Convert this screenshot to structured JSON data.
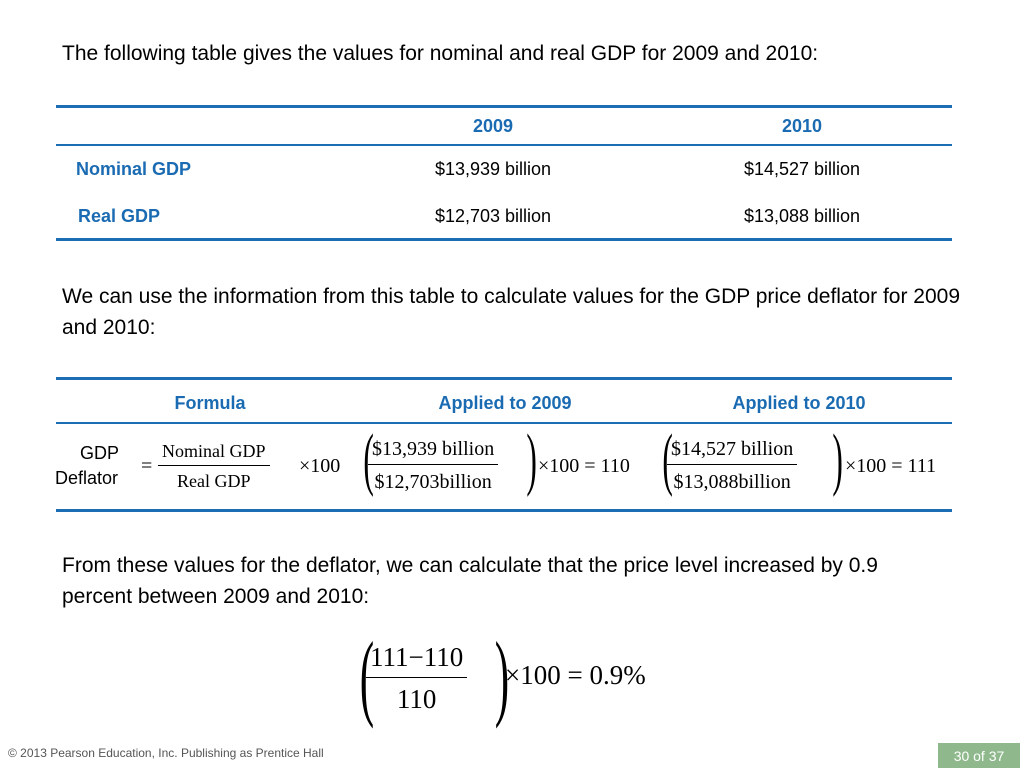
{
  "intro_text": "The following table gives the values for nominal and real GDP for 2009 and 2010:",
  "gdp_table": {
    "headers": [
      "2009",
      "2010"
    ],
    "rows": [
      {
        "label": "Nominal GDP",
        "y2009": "$13,939 billion",
        "y2010": "$14,527 billion"
      },
      {
        "label": "Real GDP",
        "y2009": "$12,703 billion",
        "y2010": "$13,088 billion"
      }
    ]
  },
  "deflator_text": "We can use the information from this table to calculate values for the GDP price deflator for 2009 and 2010:",
  "deflator_table": {
    "headers": [
      "Formula",
      "Applied to 2009",
      "Applied to 2010"
    ],
    "row_label_line1": "GDP",
    "row_label_line2": "Deflator",
    "formula": {
      "equals": "=",
      "numerator": "Nominal GDP",
      "denominator": "Real GDP",
      "times": "×100"
    },
    "applied_2009": {
      "numerator": "$13,939 billion",
      "denominator": "$12,703billion",
      "result": "×100 = 110"
    },
    "applied_2010": {
      "numerator": "$14,527 billion",
      "denominator": "$13,088billion",
      "result": "×100 = 111"
    }
  },
  "conclusion_text": "From these values for the deflator, we can calculate that the price level increased by 0.9 percent between 2009 and 2010:",
  "final_equation": {
    "numerator": "111−110",
    "denominator": "110",
    "result": "×100 = 0.9%"
  },
  "footer": {
    "copyright": "© 2013 Pearson Education, Inc. Publishing as Prentice Hall",
    "page": "30 of 37"
  },
  "colors": {
    "accent_blue": "#1b6eb4",
    "header_text_blue": "#1a6bb2",
    "page_box_green": "#8fb98c"
  }
}
